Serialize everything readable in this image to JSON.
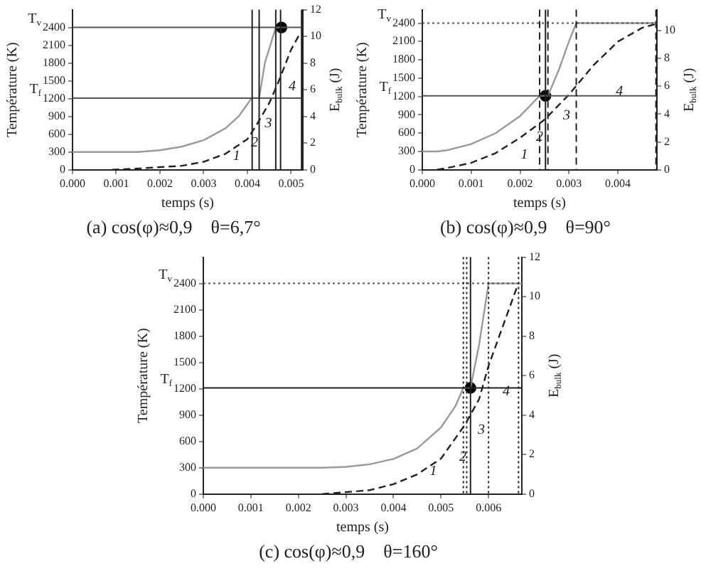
{
  "chart_data": [
    {
      "type": "line",
      "title": "(a) cos(φ)≈0,9    θ=6,7°",
      "xlabel": "temps (s)",
      "ylabel": "Température (K)",
      "y2label": "E$_{bulk}$ (J)",
      "legend": false,
      "grid": false,
      "xlim": [
        0,
        0.00527
      ],
      "xticks": [
        {
          "value": 0,
          "label": "0.000"
        },
        {
          "value": 0.001,
          "label": "0.001"
        },
        {
          "value": 0.002,
          "label": "0.002"
        },
        {
          "value": 0.003,
          "label": "0.003"
        },
        {
          "value": 0.004,
          "label": "0.004"
        },
        {
          "value": 0.005,
          "label": "0.005"
        }
      ],
      "ylim": [
        0,
        2700
      ],
      "yticks": [
        0,
        300,
        600,
        900,
        1200,
        1500,
        1800,
        2100,
        2400
      ],
      "y2lim": [
        0,
        12
      ],
      "y2ticks": [
        0,
        2,
        4,
        6,
        8,
        10,
        12
      ],
      "series": [
        {
          "type": "line",
          "color": "#9a9a9a",
          "line_style": "solid",
          "marker": "none",
          "x": [
            0,
            0.0015,
            0.002,
            0.0025,
            0.003,
            0.0035,
            0.0038,
            0.0041,
            0.00427,
            0.0044,
            0.00465,
            0.00476
          ],
          "values": [
            300,
            300,
            330,
            390,
            500,
            700,
            900,
            1210,
            1210,
            1800,
            2400,
            2400
          ]
        },
        {
          "type": "line",
          "color": "#222222",
          "axis": "y2",
          "line_style": "dashed",
          "marker": "none",
          "x": [
            0.0009,
            0.0015,
            0.002,
            0.0025,
            0.003,
            0.0035,
            0.004,
            0.0042,
            0.0045,
            0.0047,
            0.005,
            0.0052
          ],
          "values": [
            0,
            0.1,
            0.2,
            0.3,
            0.6,
            1.2,
            2.3,
            3.3,
            5,
            6.5,
            9,
            10.2
          ]
        },
        {
          "type": "scatter",
          "color": "#000000",
          "marker": "circle",
          "x": [
            0.00478
          ],
          "values": [
            2400
          ]
        }
      ],
      "ref_lines": [
        {
          "axis": "y",
          "value": 2400,
          "label": "T$_{v}$",
          "color": "#555555",
          "line_style": "solid"
        },
        {
          "axis": "y",
          "value": 1210,
          "label": "T$_{f}$",
          "color": "#555555",
          "line_style": "solid"
        },
        {
          "axis": "x",
          "value": 0.00411,
          "color": "#222222",
          "line_style": "solid"
        },
        {
          "axis": "x",
          "value": 0.00427,
          "color": "#222222",
          "line_style": "solid"
        },
        {
          "axis": "x",
          "value": 0.00465,
          "color": "#222222",
          "line_style": "solid"
        },
        {
          "axis": "x",
          "value": 0.00476,
          "color": "#222222",
          "line_style": "solid"
        },
        {
          "axis": "x",
          "value": 0.00524,
          "color": "#222222",
          "line_style": "solid"
        }
      ],
      "annotations": [
        "1",
        "2",
        "3",
        "4"
      ]
    },
    {
      "type": "line",
      "title": "(b) cos(φ)≈0,9    θ=90°",
      "xlabel": "temps (s)",
      "ylabel": "Température (K)",
      "y2label": "E$_{bulk}$ (J)",
      "legend": false,
      "grid": false,
      "xlim": [
        0,
        0.0048
      ],
      "xticks": [
        {
          "value": 0,
          "label": "0.000"
        },
        {
          "value": 0.001,
          "label": "0.001"
        },
        {
          "value": 0.002,
          "label": "0.002"
        },
        {
          "value": 0.003,
          "label": "0.003"
        },
        {
          "value": 0.004,
          "label": "0.004"
        }
      ],
      "ylim": [
        0,
        2620
      ],
      "yticks": [
        0,
        300,
        600,
        900,
        1200,
        1500,
        1800,
        2100,
        2400
      ],
      "y2lim": [
        0,
        11.5
      ],
      "y2ticks": [
        0,
        2,
        4,
        6,
        8,
        10
      ],
      "series": [
        {
          "type": "line",
          "color": "#9a9a9a",
          "line_style": "solid",
          "marker": "none",
          "x": [
            0,
            0.0003,
            0.0005,
            0.001,
            0.0015,
            0.002,
            0.0024,
            0.00257,
            0.0028,
            0.003,
            0.00315,
            0.0048
          ],
          "values": [
            300,
            300,
            320,
            420,
            600,
            880,
            1210,
            1210,
            1650,
            2100,
            2400,
            2400
          ]
        },
        {
          "type": "line",
          "color": "#222222",
          "axis": "y2",
          "line_style": "dashed",
          "marker": "none",
          "x": [
            0.0003,
            0.0006,
            0.001,
            0.0015,
            0.002,
            0.0025,
            0.003,
            0.0035,
            0.004,
            0.0045,
            0.0048
          ],
          "values": [
            0,
            0.2,
            0.5,
            1.2,
            2.3,
            3.6,
            5.4,
            7.5,
            9.2,
            10.2,
            10.5
          ]
        },
        {
          "type": "scatter",
          "color": "#000000",
          "marker": "circle",
          "x": [
            0.00252
          ],
          "values": [
            1210
          ]
        }
      ],
      "ref_lines": [
        {
          "axis": "y",
          "value": 2400,
          "label": "T$_{v}$",
          "color": "#555555",
          "line_style": "dotted"
        },
        {
          "axis": "y",
          "value": 1210,
          "label": "T$_{f}$",
          "color": "#555555",
          "line_style": "solid"
        },
        {
          "axis": "x",
          "value": 0.0024,
          "color": "#222222",
          "line_style": "dashed"
        },
        {
          "axis": "x",
          "value": 0.00252,
          "color": "#222222",
          "line_style": "solid"
        },
        {
          "axis": "x",
          "value": 0.00257,
          "color": "#222222",
          "line_style": "dashed"
        },
        {
          "axis": "x",
          "value": 0.00315,
          "color": "#222222",
          "line_style": "dashed"
        },
        {
          "axis": "x",
          "value": 0.00478,
          "color": "#222222",
          "line_style": "dashed"
        }
      ],
      "annotations": [
        "1",
        "2",
        "3",
        "4"
      ]
    },
    {
      "type": "line",
      "title": "(c) cos(φ)≈0,9    θ=160°",
      "xlabel": "temps (s)",
      "ylabel": "Température (K)",
      "y2label": "E$_{bulk}$ (J)",
      "legend": false,
      "grid": false,
      "xlim": [
        0,
        0.0067
      ],
      "xticks": [
        {
          "value": 0,
          "label": "0.000"
        },
        {
          "value": 0.001,
          "label": "0.001"
        },
        {
          "value": 0.002,
          "label": "0.002"
        },
        {
          "value": 0.003,
          "label": "0.003"
        },
        {
          "value": 0.004,
          "label": "0.004"
        },
        {
          "value": 0.005,
          "label": "0.005"
        },
        {
          "value": 0.006,
          "label": "0.006"
        }
      ],
      "ylim": [
        0,
        2700
      ],
      "yticks": [
        0,
        300,
        600,
        900,
        1200,
        1500,
        1800,
        2100,
        2400
      ],
      "y2lim": [
        0,
        12
      ],
      "y2ticks": [
        0,
        2,
        4,
        6,
        8,
        10,
        12
      ],
      "series": [
        {
          "type": "line",
          "color": "#9a9a9a",
          "line_style": "solid",
          "marker": "none",
          "x": [
            0,
            0.0025,
            0.003,
            0.0035,
            0.004,
            0.0045,
            0.005,
            0.0053,
            0.00547,
            0.00562,
            0.0058,
            0.006,
            0.0067
          ],
          "values": [
            300,
            300,
            310,
            340,
            400,
            520,
            760,
            1000,
            1210,
            1210,
            1700,
            2400,
            2400
          ]
        },
        {
          "type": "line",
          "color": "#222222",
          "axis": "y2",
          "line_style": "dashed",
          "marker": "none",
          "x": [
            0.0025,
            0.003,
            0.0035,
            0.004,
            0.0045,
            0.005,
            0.0055,
            0.0058,
            0.006,
            0.0063,
            0.0066
          ],
          "values": [
            0,
            0.1,
            0.2,
            0.5,
            1,
            1.8,
            3.5,
            4.8,
            6.5,
            8.5,
            10.5
          ]
        },
        {
          "type": "scatter",
          "color": "#000000",
          "marker": "circle",
          "x": [
            0.00562
          ],
          "values": [
            1210
          ]
        }
      ],
      "ref_lines": [
        {
          "axis": "y",
          "value": 2400,
          "label": "T$_{v}$",
          "color": "#555555",
          "line_style": "dotted"
        },
        {
          "axis": "y",
          "value": 1210,
          "label": "T$_{f}$",
          "color": "#222222",
          "line_style": "solid"
        },
        {
          "axis": "x",
          "value": 0.00547,
          "color": "#222222",
          "line_style": "dotted"
        },
        {
          "axis": "x",
          "value": 0.00554,
          "color": "#222222",
          "line_style": "dotted"
        },
        {
          "axis": "x",
          "value": 0.00562,
          "color": "#222222",
          "line_style": "solid"
        },
        {
          "axis": "x",
          "value": 0.006,
          "color": "#222222",
          "line_style": "dotted"
        },
        {
          "axis": "x",
          "value": 0.00663,
          "color": "#222222",
          "line_style": "dotted"
        }
      ],
      "annotations": [
        "1",
        "2",
        "3",
        "4"
      ]
    }
  ]
}
